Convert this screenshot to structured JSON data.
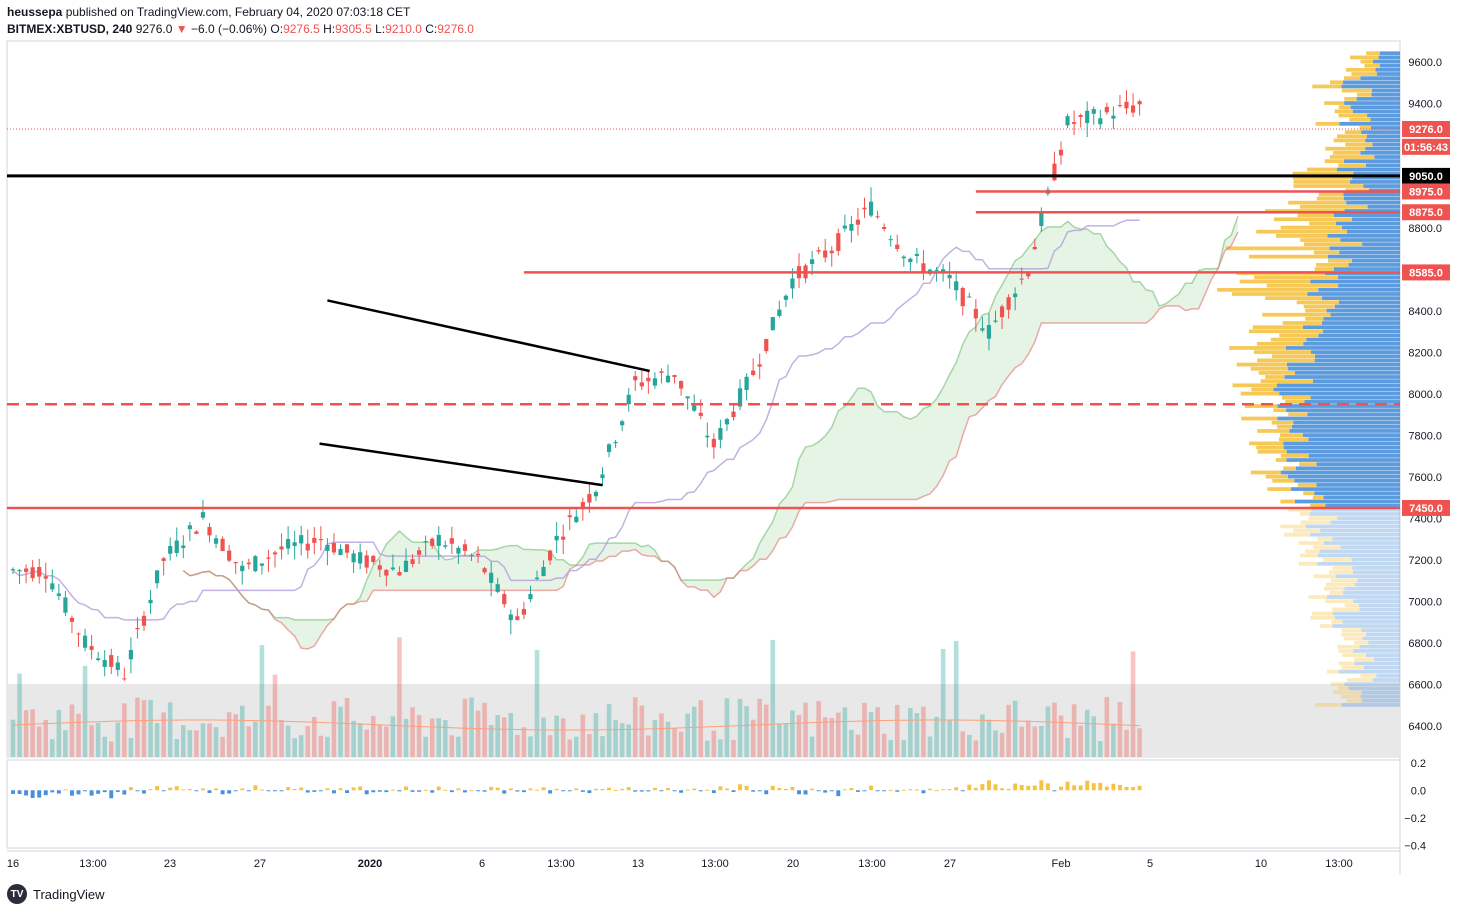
{
  "header": {
    "author": "heussepa",
    "published_text": "published on TradingView.com, February 04, 2020 07:03:18 CET",
    "symbol": "BITMEX:XBTUSD, 240",
    "last": "9276.0",
    "change": "−6.0 (−0.06%)",
    "o_label": "O:",
    "o_value": "9276.5",
    "h_label": "H:",
    "h_value": "9305.5",
    "l_label": "L:",
    "l_value": "9210.0",
    "c_label": "C:",
    "c_value": "9276.0"
  },
  "footer": {
    "brand": "TradingView"
  },
  "colors": {
    "up": "#26a69a",
    "down": "#ef5350",
    "bullish_cloud": "#a5d6a7",
    "bearish_cloud": "#ef9a9a",
    "baseline": "#b39ddb",
    "vp_blue": "#4a90d9",
    "vp_yellow": "#f5c242",
    "price_line": "#ef5350",
    "horizontal_black": "#000000"
  },
  "chart_data": {
    "type": "candlestick",
    "y_ticks": [
      "9600.0",
      "9400.0",
      "8800.0",
      "8400.0",
      "8200.0",
      "8000.0",
      "7800.0",
      "7600.0",
      "7400.0",
      "7200.0",
      "7000.0",
      "6800.0",
      "6600.0",
      "6400.0"
    ],
    "x_ticks": [
      "16",
      "13:00",
      "23",
      "27",
      "2020",
      "6",
      "13:00",
      "13",
      "13:00",
      "20",
      "13:00",
      "27",
      "Feb",
      "5",
      "10",
      "13:00"
    ],
    "ylim": [
      6250,
      9700
    ],
    "price_labels": [
      {
        "text": "9276.0",
        "value": 9276,
        "color": "#ef5350",
        "style": "price"
      },
      {
        "text": "01:56:43",
        "value": 9190,
        "color": "#ef5350",
        "style": "countdown"
      },
      {
        "text": "9050.0",
        "value": 9050,
        "color": "#000000",
        "style": "level"
      },
      {
        "text": "8975.0",
        "value": 8975,
        "color": "#ef5350",
        "style": "level"
      },
      {
        "text": "8875.0",
        "value": 8875,
        "color": "#ef5350",
        "style": "level"
      },
      {
        "text": "8585.0",
        "value": 8585,
        "color": "#ef5350",
        "style": "level"
      },
      {
        "text": "7450.0",
        "value": 7450,
        "color": "#ef5350",
        "style": "level"
      }
    ],
    "horizontal_levels": [
      {
        "value": 9050,
        "color": "#000000",
        "style": "solid"
      },
      {
        "value": 8975,
        "color": "#ef5350",
        "style": "solid",
        "from_day": 24.5
      },
      {
        "value": 8875,
        "color": "#ef5350",
        "style": "solid",
        "from_day": 24.5
      },
      {
        "value": 8585,
        "color": "#ef5350",
        "style": "solid",
        "from_day": 13.0
      },
      {
        "value": 7950,
        "color": "#ef5350",
        "style": "dashed"
      },
      {
        "value": 7450,
        "color": "#ef5350",
        "style": "solid"
      }
    ],
    "trendlines": [
      {
        "from": [
          8.0,
          8450
        ],
        "to": [
          16.2,
          8110
        ]
      },
      {
        "from": [
          7.8,
          7760
        ],
        "to": [
          15.0,
          7560
        ]
      }
    ],
    "oscillator": {
      "y_ticks": [
        "0.2",
        "0.0",
        "−0.2",
        "−0.4"
      ],
      "ylim": [
        -0.42,
        0.22
      ]
    },
    "series": [
      {
        "name": "price",
        "days": [
          0,
          1,
          2,
          3,
          4,
          5,
          6,
          7,
          8,
          9,
          10,
          11,
          12,
          13,
          14,
          15,
          16,
          17,
          18,
          19,
          20,
          21,
          22,
          23,
          24,
          25,
          26,
          27,
          28,
          29,
          30
        ],
        "close": [
          7150,
          6800,
          6650,
          7200,
          7400,
          7150,
          7250,
          7300,
          7200,
          7150,
          7300,
          7200,
          6900,
          7300,
          7550,
          8050,
          8100,
          7750,
          8100,
          8550,
          8700,
          8900,
          8650,
          8550,
          8300,
          8600,
          9300,
          9350,
          9400,
          9350,
          9276
        ]
      }
    ]
  }
}
